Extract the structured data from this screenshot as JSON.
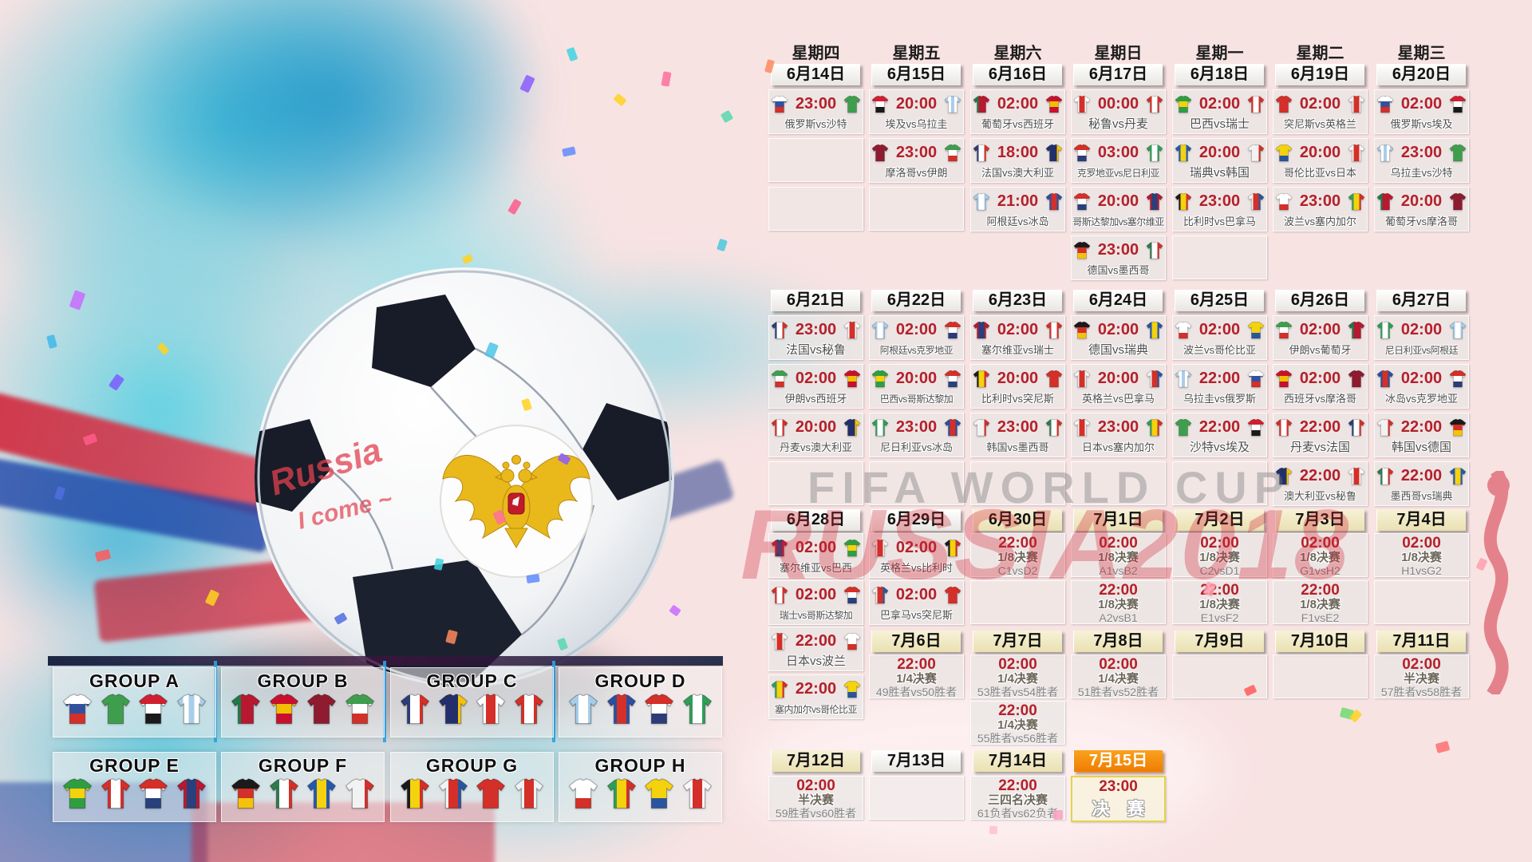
{
  "art": {
    "watermark_line1": "FIFA WORLD CUP",
    "watermark_line2": "RUSSIA2018",
    "ball_text1": "Russia",
    "ball_text2": "I come ~"
  },
  "colors": {
    "time_red": "#b4202a",
    "date_plain_bg": "#f2f0ec",
    "date_knockout_bg": "#efe8c4",
    "date_final_bg": "#f48f12",
    "final_border": "#e3d44c",
    "background_pink": "#f8e3e3",
    "splash_cyan": "#45c5da"
  },
  "weekday_header": [
    "星期四",
    "星期五",
    "星期六",
    "星期日",
    "星期一",
    "星期二",
    "星期三"
  ],
  "jerseys": {
    "russia": {
      "dir": "h",
      "stripes": [
        "#ffffff",
        "#31509e",
        "#d42f28"
      ]
    },
    "saudi": {
      "dir": "v",
      "stripes": [
        "#3f9e4d"
      ]
    },
    "egypt": {
      "dir": "h",
      "stripes": [
        "#d02030",
        "#ffffff",
        "#1a1a1a"
      ]
    },
    "uruguay": {
      "dir": "v",
      "stripes": [
        "#a9cdeb",
        "#ffffff",
        "#a9cdeb",
        "#ffffff",
        "#a9cdeb"
      ]
    },
    "portugal": {
      "dir": "v",
      "stripes": [
        "#1f7a48",
        "#b81830",
        "#b81830"
      ]
    },
    "spain": {
      "dir": "h",
      "stripes": [
        "#c8102e",
        "#f1bf00",
        "#c8102e"
      ]
    },
    "morocco": {
      "dir": "v",
      "stripes": [
        "#8e1b2f"
      ]
    },
    "iran": {
      "dir": "h",
      "stripes": [
        "#3f9e4d",
        "#ffffff",
        "#d42f28"
      ]
    },
    "france": {
      "dir": "v",
      "stripes": [
        "#2b3c78",
        "#ffffff",
        "#d42f28"
      ]
    },
    "australia": {
      "dir": "v",
      "stripes": [
        "#232f6b",
        "#232f6b",
        "#f4c20d"
      ]
    },
    "peru": {
      "dir": "v",
      "stripes": [
        "#ffffff",
        "#d42f28",
        "#ffffff"
      ]
    },
    "denmark": {
      "dir": "v",
      "stripes": [
        "#d42f28",
        "#ffffff",
        "#d42f28"
      ]
    },
    "argentina": {
      "dir": "v",
      "stripes": [
        "#a5cdea",
        "#ffffff",
        "#a5cdea"
      ]
    },
    "iceland": {
      "dir": "v",
      "stripes": [
        "#2b4f9e",
        "#d42f28",
        "#2b4f9e"
      ]
    },
    "croatia": {
      "dir": "h",
      "stripes": [
        "#d42f28",
        "#ffffff",
        "#2b3c78"
      ]
    },
    "nigeria": {
      "dir": "v",
      "stripes": [
        "#2f9e57",
        "#ffffff",
        "#2f9e57"
      ]
    },
    "costarica": {
      "dir": "h",
      "stripes": [
        "#d42f28",
        "#ffffff",
        "#28407c"
      ]
    },
    "serbia": {
      "dir": "v",
      "stripes": [
        "#b81830",
        "#28407c",
        "#b81830"
      ]
    },
    "brazil": {
      "dir": "h",
      "stripes": [
        "#2f9e41",
        "#f4d20d",
        "#2f9e41"
      ]
    },
    "switzerland": {
      "dir": "v",
      "stripes": [
        "#d42f28",
        "#ffffff",
        "#d42f28"
      ]
    },
    "sweden": {
      "dir": "v",
      "stripes": [
        "#2458ad",
        "#f4d20d",
        "#2458ad"
      ]
    },
    "korea": {
      "dir": "v",
      "stripes": [
        "#f2f2f2",
        "#f2f2f2",
        "#d42f28"
      ]
    },
    "belgium": {
      "dir": "v",
      "stripes": [
        "#1a1a1a",
        "#f4d20d",
        "#d42f28"
      ]
    },
    "panama": {
      "dir": "v",
      "stripes": [
        "#f2f2f2",
        "#d42f28",
        "#28559e"
      ]
    },
    "tunisia": {
      "dir": "v",
      "stripes": [
        "#d42f28"
      ]
    },
    "england": {
      "dir": "v",
      "stripes": [
        "#f2f2f2",
        "#d42f28",
        "#f2f2f2"
      ]
    },
    "poland": {
      "dir": "h",
      "stripes": [
        "#ffffff",
        "#ffffff",
        "#d42f28"
      ]
    },
    "senegal": {
      "dir": "v",
      "stripes": [
        "#2f9e57",
        "#f4d20d",
        "#d42f28"
      ]
    },
    "colombia": {
      "dir": "h",
      "stripes": [
        "#f4d20d",
        "#f4d20d",
        "#28559e"
      ]
    },
    "japan": {
      "dir": "v",
      "stripes": [
        "#f7f7f7",
        "#d42f28",
        "#f7f7f7"
      ]
    },
    "germany": {
      "dir": "h",
      "stripes": [
        "#1a1a1a",
        "#d42f28",
        "#f4c20d"
      ]
    },
    "mexico": {
      "dir": "v",
      "stripes": [
        "#2f7a4d",
        "#ffffff",
        "#d42f28"
      ]
    }
  },
  "schedule": [
    {
      "geom": "w1",
      "dates": [
        {
          "label": "6月14日",
          "v": "plain"
        },
        {
          "label": "6月15日",
          "v": "plain"
        },
        {
          "label": "6月16日",
          "v": "plain"
        },
        {
          "label": "6月17日",
          "v": "plain"
        },
        {
          "label": "6月18日",
          "v": "plain"
        },
        {
          "label": "6月19日",
          "v": "plain"
        },
        {
          "label": "6月20日",
          "v": "plain"
        }
      ],
      "cols": [
        [
          {
            "t": "m",
            "time": "23:00",
            "h": "russia",
            "a": "saudi",
            "label": "俄罗斯vs沙特"
          },
          {
            "t": "e"
          },
          {
            "t": "e"
          }
        ],
        [
          {
            "t": "m",
            "time": "20:00",
            "h": "egypt",
            "a": "uruguay",
            "label": "埃及vs乌拉圭"
          },
          {
            "t": "m",
            "time": "23:00",
            "h": "morocco",
            "a": "iran",
            "label": "摩洛哥vs伊朗"
          },
          {
            "t": "e"
          }
        ],
        [
          {
            "t": "m",
            "time": "02:00",
            "h": "portugal",
            "a": "spain",
            "label": "葡萄牙vs西班牙"
          },
          {
            "t": "m",
            "time": "18:00",
            "h": "france",
            "a": "australia",
            "label": "法国vs澳大利亚"
          },
          {
            "t": "m",
            "time": "21:00",
            "h": "argentina",
            "a": "iceland",
            "label": "阿根廷vs冰岛"
          }
        ],
        [
          {
            "t": "m",
            "time": "00:00",
            "h": "peru",
            "a": "denmark",
            "label": "秘鲁vs丹麦"
          },
          {
            "t": "m",
            "time": "03:00",
            "h": "croatia",
            "a": "nigeria",
            "label": "克罗地亚vs尼日利亚"
          },
          {
            "t": "m",
            "time": "20:00",
            "h": "costarica",
            "a": "serbia",
            "label": "哥斯达黎加vs塞尔维亚"
          },
          {
            "t": "m",
            "time": "23:00",
            "h": "germany",
            "a": "mexico",
            "label": "德国vs墨西哥"
          }
        ],
        [
          {
            "t": "m",
            "time": "02:00",
            "h": "brazil",
            "a": "switzerland",
            "label": "巴西vs瑞士"
          },
          {
            "t": "m",
            "time": "20:00",
            "h": "sweden",
            "a": "korea",
            "label": "瑞典vs韩国"
          },
          {
            "t": "m",
            "time": "23:00",
            "h": "belgium",
            "a": "panama",
            "label": "比利时vs巴拿马"
          },
          {
            "t": "e"
          }
        ],
        [
          {
            "t": "m",
            "time": "02:00",
            "h": "tunisia",
            "a": "england",
            "label": "突尼斯vs英格兰"
          },
          {
            "t": "m",
            "time": "20:00",
            "h": "colombia",
            "a": "japan",
            "label": "哥伦比亚vs日本"
          },
          {
            "t": "m",
            "time": "23:00",
            "h": "poland",
            "a": "senegal",
            "label": "波兰vs塞内加尔"
          }
        ],
        [
          {
            "t": "m",
            "time": "02:00",
            "h": "russia",
            "a": "egypt",
            "label": "俄罗斯vs埃及"
          },
          {
            "t": "m",
            "time": "23:00",
            "h": "uruguay",
            "a": "saudi",
            "label": "乌拉圭vs沙特"
          },
          {
            "t": "m",
            "time": "20:00",
            "h": "portugal",
            "a": "morocco",
            "label": "葡萄牙vs摩洛哥"
          }
        ]
      ]
    },
    {
      "geom": "w2",
      "dates": [
        {
          "label": "6月21日",
          "v": "plain"
        },
        {
          "label": "6月22日",
          "v": "plain"
        },
        {
          "label": "6月23日",
          "v": "plain"
        },
        {
          "label": "6月24日",
          "v": "plain"
        },
        {
          "label": "6月25日",
          "v": "plain"
        },
        {
          "label": "6月26日",
          "v": "plain"
        },
        {
          "label": "6月27日",
          "v": "plain"
        }
      ],
      "cols": [
        [
          {
            "t": "m",
            "time": "23:00",
            "h": "france",
            "a": "peru",
            "label": "法国vs秘鲁"
          },
          {
            "t": "m",
            "time": "02:00",
            "h": "iran",
            "a": "spain",
            "label": "伊朗vs西班牙"
          },
          {
            "t": "m",
            "time": "20:00",
            "h": "denmark",
            "a": "australia",
            "label": "丹麦vs澳大利亚"
          },
          {
            "t": "e"
          }
        ],
        [
          {
            "t": "m",
            "time": "02:00",
            "h": "argentina",
            "a": "croatia",
            "label": "阿根廷vs克罗地亚"
          },
          {
            "t": "m",
            "time": "20:00",
            "h": "brazil",
            "a": "costarica",
            "label": "巴西vs哥斯达黎加"
          },
          {
            "t": "m",
            "time": "23:00",
            "h": "nigeria",
            "a": "iceland",
            "label": "尼日利亚vs冰岛"
          },
          {
            "t": "e"
          }
        ],
        [
          {
            "t": "m",
            "time": "02:00",
            "h": "serbia",
            "a": "switzerland",
            "label": "塞尔维亚vs瑞士"
          },
          {
            "t": "m",
            "time": "20:00",
            "h": "belgium",
            "a": "tunisia",
            "label": "比利时vs突尼斯"
          },
          {
            "t": "m",
            "time": "23:00",
            "h": "korea",
            "a": "mexico",
            "label": "韩国vs墨西哥"
          },
          {
            "t": "e"
          }
        ],
        [
          {
            "t": "m",
            "time": "02:00",
            "h": "germany",
            "a": "sweden",
            "label": "德国vs瑞典"
          },
          {
            "t": "m",
            "time": "20:00",
            "h": "england",
            "a": "panama",
            "label": "英格兰vs巴拿马"
          },
          {
            "t": "m",
            "time": "23:00",
            "h": "japan",
            "a": "senegal",
            "label": "日本vs塞内加尔"
          },
          {
            "t": "e"
          }
        ],
        [
          {
            "t": "m",
            "time": "02:00",
            "h": "poland",
            "a": "colombia",
            "label": "波兰vs哥伦比亚"
          },
          {
            "t": "m",
            "time": "22:00",
            "h": "uruguay",
            "a": "russia",
            "label": "乌拉圭vs俄罗斯"
          },
          {
            "t": "m",
            "time": "22:00",
            "h": "saudi",
            "a": "egypt",
            "label": "沙特vs埃及"
          },
          {
            "t": "e"
          }
        ],
        [
          {
            "t": "m",
            "time": "02:00",
            "h": "iran",
            "a": "portugal",
            "label": "伊朗vs葡萄牙"
          },
          {
            "t": "m",
            "time": "02:00",
            "h": "spain",
            "a": "morocco",
            "label": "西班牙vs摩洛哥"
          },
          {
            "t": "m",
            "time": "22:00",
            "h": "denmark",
            "a": "france",
            "label": "丹麦vs法国"
          },
          {
            "t": "m",
            "time": "22:00",
            "h": "australia",
            "a": "peru",
            "label": "澳大利亚vs秘鲁"
          }
        ],
        [
          {
            "t": "m",
            "time": "02:00",
            "h": "nigeria",
            "a": "argentina",
            "label": "尼日利亚vs阿根廷"
          },
          {
            "t": "m",
            "time": "02:00",
            "h": "iceland",
            "a": "croatia",
            "label": "冰岛vs克罗地亚"
          },
          {
            "t": "m",
            "time": "22:00",
            "h": "korea",
            "a": "germany",
            "label": "韩国vs德国"
          },
          {
            "t": "m",
            "time": "22:00",
            "h": "mexico",
            "a": "sweden",
            "label": "墨西哥vs瑞典"
          }
        ]
      ]
    },
    {
      "geom": "w3",
      "dates": [
        {
          "label": "6月28日",
          "v": "plain"
        },
        {
          "label": "6月29日",
          "v": "plain"
        },
        {
          "label": "6月30日",
          "v": "ko"
        },
        {
          "label": "7月1日",
          "v": "ko"
        },
        {
          "label": "7月2日",
          "v": "ko"
        },
        {
          "label": "7月3日",
          "v": "ko"
        },
        {
          "label": "7月4日",
          "v": "ko"
        }
      ],
      "cols": [
        [
          {
            "t": "m",
            "time": "02:00",
            "h": "serbia",
            "a": "brazil",
            "label": "塞尔维亚vs巴西"
          },
          {
            "t": "m",
            "time": "02:00",
            "h": "switzerland",
            "a": "costarica",
            "label": "瑞士vs哥斯达黎加"
          },
          {
            "t": "m",
            "time": "22:00",
            "h": "japan",
            "a": "poland",
            "label": "日本vs波兰"
          },
          {
            "t": "m",
            "time": "22:00",
            "h": "senegal",
            "a": "colombia",
            "label": "塞内加尔vs哥伦比亚"
          }
        ],
        [
          {
            "t": "m",
            "time": "02:00",
            "h": "england",
            "a": "belgium",
            "label": "英格兰vs比利时"
          },
          {
            "t": "m",
            "time": "02:00",
            "h": "panama",
            "a": "tunisia",
            "label": "巴拿马vs突尼斯"
          }
        ],
        [
          {
            "t": "k",
            "time": "22:00",
            "stage": "1/8决赛",
            "pair": "C1vsD2"
          },
          {
            "t": "e"
          }
        ],
        [
          {
            "t": "k",
            "time": "02:00",
            "stage": "1/8决赛",
            "pair": "A1vsB2"
          },
          {
            "t": "k",
            "time": "22:00",
            "stage": "1/8决赛",
            "pair": "A2vsB1"
          }
        ],
        [
          {
            "t": "k",
            "time": "02:00",
            "stage": "1/8决赛",
            "pair": "C2vsD1"
          },
          {
            "t": "k",
            "time": "22:00",
            "stage": "1/8决赛",
            "pair": "E1vsF2"
          }
        ],
        [
          {
            "t": "k",
            "time": "02:00",
            "stage": "1/8决赛",
            "pair": "G1vsH2"
          },
          {
            "t": "k",
            "time": "22:00",
            "stage": "1/8决赛",
            "pair": "F1vsE2"
          }
        ],
        [
          {
            "t": "k",
            "time": "02:00",
            "stage": "1/8决赛",
            "pair": "H1vsG2"
          },
          {
            "t": "e"
          }
        ]
      ]
    },
    {
      "geom": "w4",
      "dates": [
        {
          "label": "7月6日",
          "v": "ko"
        },
        {
          "label": "7月7日",
          "v": "ko"
        },
        {
          "label": "7月8日",
          "v": "ko"
        },
        {
          "label": "7月9日",
          "v": "ko"
        },
        {
          "label": "7月10日",
          "v": "ko"
        },
        {
          "label": "7月11日",
          "v": "ko"
        }
      ],
      "cols": [
        [
          {
            "t": "k",
            "time": "22:00",
            "stage": "1/4决赛",
            "pair": "49胜者vs50胜者"
          }
        ],
        [
          {
            "t": "k",
            "time": "02:00",
            "stage": "1/4决赛",
            "pair": "53胜者vs54胜者"
          },
          {
            "t": "k",
            "time": "22:00",
            "stage": "1/4决赛",
            "pair": "55胜者vs56胜者"
          }
        ],
        [
          {
            "t": "k",
            "time": "02:00",
            "stage": "1/4决赛",
            "pair": "51胜者vs52胜者"
          }
        ],
        [
          {
            "t": "e"
          }
        ],
        [
          {
            "t": "e"
          }
        ],
        [
          {
            "t": "k",
            "time": "02:00",
            "stage": "半决赛",
            "pair": "57胜者vs58胜者"
          }
        ]
      ]
    },
    {
      "geom": "w5",
      "dates": [
        {
          "label": "7月12日",
          "v": "ko"
        },
        {
          "label": "7月13日",
          "v": "plain"
        },
        {
          "label": "7月14日",
          "v": "ko"
        },
        {
          "label": "7月15日",
          "v": "final"
        }
      ],
      "cols": [
        [
          {
            "t": "k",
            "time": "02:00",
            "stage": "半决赛",
            "pair": "59胜者vs60胜者"
          }
        ],
        [
          {
            "t": "e"
          }
        ],
        [
          {
            "t": "k",
            "time": "22:00",
            "stage": "三四名决赛",
            "pair": "61负者vs62负者"
          }
        ],
        [
          {
            "t": "f",
            "time": "23:00",
            "label": "决 赛"
          }
        ]
      ]
    }
  ],
  "groups": [
    {
      "label": "GROUP A",
      "teams": [
        "russia",
        "saudi",
        "egypt",
        "uruguay"
      ]
    },
    {
      "label": "GROUP B",
      "teams": [
        "portugal",
        "spain",
        "morocco",
        "iran"
      ]
    },
    {
      "label": "GROUP C",
      "teams": [
        "france",
        "australia",
        "peru",
        "denmark"
      ]
    },
    {
      "label": "GROUP D",
      "teams": [
        "argentina",
        "iceland",
        "croatia",
        "nigeria"
      ]
    },
    {
      "label": "GROUP E",
      "teams": [
        "brazil",
        "switzerland",
        "costarica",
        "serbia"
      ]
    },
    {
      "label": "GROUP F",
      "teams": [
        "germany",
        "mexico",
        "sweden",
        "korea"
      ]
    },
    {
      "label": "GROUP G",
      "teams": [
        "belgium",
        "panama",
        "tunisia",
        "england"
      ]
    },
    {
      "label": "GROUP H",
      "teams": [
        "poland",
        "senegal",
        "colombia",
        "japan"
      ]
    }
  ]
}
